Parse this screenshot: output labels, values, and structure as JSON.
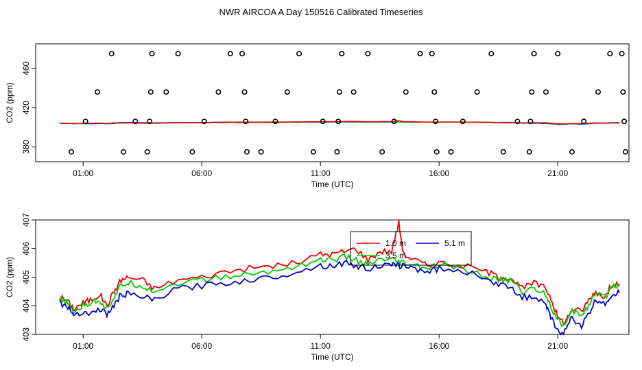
{
  "title": "NWR AIRCOA A  Day 150516  Calibrated Timeseries",
  "chart_data": [
    {
      "type": "scatter",
      "xlabel": "Time (UTC)",
      "ylabel": "CO2 (ppm)",
      "x_unit": "hours UTC",
      "xlim": [
        -1,
        24
      ],
      "xticks": [
        1,
        6,
        11,
        16,
        21
      ],
      "xtick_labels": [
        "01:00",
        "06:00",
        "11:00",
        "16:00",
        "21:00"
      ],
      "ylim": [
        365,
        485
      ],
      "yticks": [
        380,
        420,
        460
      ],
      "ytick_labels": [
        "380",
        "420",
        "460"
      ],
      "grid": false,
      "series": [
        {
          "style": "open-circles",
          "color": "#000000",
          "points": [
            [
              0.5,
              375
            ],
            [
              1.1,
              406
            ],
            [
              1.6,
              436
            ],
            [
              2.2,
              475
            ],
            [
              2.7,
              375
            ],
            [
              3.2,
              406
            ],
            [
              3.7,
              375
            ],
            [
              3.8,
              406
            ],
            [
              3.85,
              436
            ],
            [
              3.9,
              475
            ],
            [
              4.5,
              436
            ],
            [
              5.0,
              475
            ],
            [
              5.6,
              375
            ],
            [
              6.1,
              406
            ],
            [
              6.7,
              436
            ],
            [
              7.2,
              475
            ],
            [
              7.7,
              475
            ],
            [
              7.8,
              436
            ],
            [
              7.85,
              406
            ],
            [
              7.9,
              375
            ],
            [
              8.5,
              375
            ],
            [
              9.1,
              406
            ],
            [
              9.6,
              436
            ],
            [
              10.1,
              475
            ],
            [
              10.7,
              375
            ],
            [
              11.1,
              406
            ],
            [
              11.7,
              375
            ],
            [
              11.75,
              406
            ],
            [
              11.8,
              436
            ],
            [
              11.9,
              475
            ],
            [
              12.4,
              436
            ],
            [
              13.0,
              475
            ],
            [
              13.6,
              375
            ],
            [
              14.1,
              406
            ],
            [
              14.6,
              436
            ],
            [
              15.2,
              475
            ],
            [
              15.7,
              475
            ],
            [
              15.8,
              436
            ],
            [
              15.85,
              406
            ],
            [
              15.9,
              375
            ],
            [
              16.5,
              375
            ],
            [
              17.0,
              406
            ],
            [
              17.6,
              436
            ],
            [
              18.2,
              475
            ],
            [
              18.7,
              375
            ],
            [
              19.3,
              406
            ],
            [
              19.8,
              375
            ],
            [
              19.85,
              406
            ],
            [
              19.9,
              436
            ],
            [
              20.0,
              475
            ],
            [
              20.5,
              436
            ],
            [
              21.0,
              475
            ],
            [
              21.6,
              375
            ],
            [
              22.1,
              406
            ],
            [
              22.7,
              436
            ],
            [
              23.2,
              475
            ],
            [
              23.7,
              475
            ],
            [
              23.75,
              436
            ],
            [
              23.8,
              406
            ],
            [
              23.85,
              375
            ]
          ]
        },
        {
          "name": "",
          "style": "line",
          "color": "#0000cc",
          "values_ref": "panel2"
        }
      ]
    },
    {
      "type": "line",
      "xlabel": "Time (UTC)",
      "ylabel": "CO2 (ppm)",
      "x_unit": "hours UTC",
      "xlim": [
        -1,
        24
      ],
      "xticks": [
        1,
        6,
        11,
        16,
        21
      ],
      "xtick_labels": [
        "01:00",
        "06:00",
        "11:00",
        "16:00",
        "21:00"
      ],
      "ylim": [
        403,
        407
      ],
      "yticks": [
        403,
        404,
        405,
        406,
        407
      ],
      "ytick_labels": [
        "403",
        "404",
        "405",
        "406",
        "407"
      ],
      "grid": false,
      "legend": {
        "placement": "top-center",
        "entries": [
          {
            "label": "1.0 m",
            "color": "#ee0000"
          },
          {
            "label": "5.1 m",
            "color": "#0000cc"
          },
          {
            "label": "3.5 m",
            "color": "#00cc00"
          }
        ]
      },
      "keypoints": {
        "x": [
          0,
          0.3,
          0.6,
          1.0,
          1.3,
          1.7,
          2.0,
          2.3,
          2.6,
          2.9,
          3.5,
          4.0,
          5.0,
          6.0,
          7.0,
          8.0,
          9.0,
          10.0,
          11.0,
          11.5,
          12.0,
          12.5,
          13.0,
          13.5,
          14.0,
          14.3,
          14.5,
          15.0,
          15.5,
          16.0,
          17.0,
          18.0,
          18.5,
          19.0,
          19.5,
          20.0,
          20.5,
          20.7,
          21.0,
          21.3,
          21.6,
          22.0,
          22.3,
          22.6,
          23.0,
          23.3,
          23.6
        ],
        "series": [
          {
            "name": "1.0 m",
            "color": "#ee0000",
            "values": [
              404.3,
              404.2,
              403.9,
              404.1,
              404.2,
              404.4,
              404.0,
              404.5,
              404.9,
              405.0,
              404.9,
              404.6,
              404.9,
              405.0,
              405.2,
              405.3,
              405.4,
              405.5,
              405.8,
              405.8,
              405.9,
              406.0,
              405.6,
              405.9,
              405.9,
              406.9,
              405.8,
              405.6,
              405.4,
              405.5,
              405.4,
              405.2,
              405.0,
              405.0,
              404.6,
              404.8,
              404.6,
              404.3,
              403.6,
              403.4,
              403.9,
              403.8,
              404.2,
              404.5,
              404.3,
              404.8,
              404.75
            ]
          },
          {
            "name": "3.5 m",
            "color": "#00cc00",
            "values": [
              404.2,
              404.1,
              403.8,
              404.0,
              404.1,
              404.2,
              403.9,
              404.3,
              404.7,
              404.8,
              404.7,
              404.5,
              404.8,
              404.9,
              405.0,
              405.1,
              405.2,
              405.4,
              405.6,
              405.6,
              405.7,
              405.6,
              405.4,
              405.6,
              405.6,
              405.5,
              405.5,
              405.4,
              405.3,
              405.4,
              405.3,
              405.0,
              404.9,
              404.9,
              404.5,
              404.6,
              404.4,
              404.0,
              403.5,
              403.3,
              403.8,
              403.7,
              404.0,
              404.4,
              404.3,
              404.7,
              404.75
            ]
          },
          {
            "name": "5.1 m",
            "color": "#0000cc",
            "values": [
              404.1,
              404.0,
              403.7,
              403.8,
              403.7,
              403.9,
              403.7,
              404.0,
              404.4,
              404.4,
              404.3,
              404.2,
              404.6,
              404.7,
              404.8,
              404.9,
              405.0,
              405.2,
              405.4,
              405.4,
              405.5,
              405.4,
              405.3,
              405.4,
              405.4,
              405.4,
              405.4,
              405.3,
              405.2,
              405.3,
              405.2,
              405.0,
              404.7,
              404.7,
              404.3,
              404.3,
              404.0,
              403.6,
              403.1,
              403.1,
              403.6,
              403.3,
              403.7,
              404.2,
              404.1,
              404.4,
              404.45
            ]
          }
        ]
      }
    }
  ]
}
